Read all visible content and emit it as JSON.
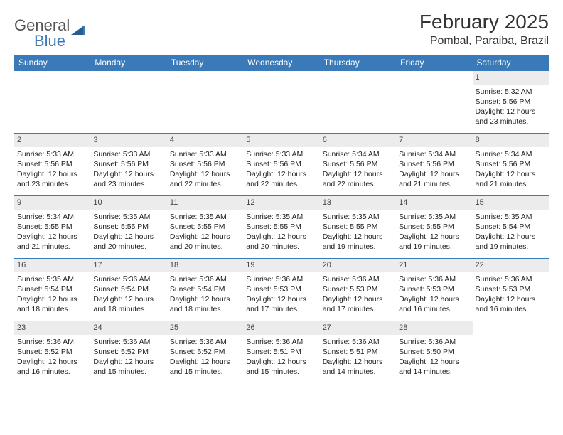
{
  "logo": {
    "word1": "General",
    "word2": "Blue"
  },
  "title": "February 2025",
  "location": "Pombal, Paraiba, Brazil",
  "colors": {
    "header_bg": "#3a7ab8",
    "header_fg": "#ffffff",
    "daynum_bg": "#ececec",
    "cell_border": "#3a7ab8",
    "text": "#222222",
    "logo_gray": "#555555",
    "logo_blue": "#3a7ab8"
  },
  "typography": {
    "title_fontsize": 28,
    "location_fontsize": 16,
    "header_fontsize": 12,
    "cell_fontsize": 10.5,
    "font_family": "Arial"
  },
  "day_headers": [
    "Sunday",
    "Monday",
    "Tuesday",
    "Wednesday",
    "Thursday",
    "Friday",
    "Saturday"
  ],
  "weeks": [
    [
      {
        "n": "",
        "lines": []
      },
      {
        "n": "",
        "lines": []
      },
      {
        "n": "",
        "lines": []
      },
      {
        "n": "",
        "lines": []
      },
      {
        "n": "",
        "lines": []
      },
      {
        "n": "",
        "lines": []
      },
      {
        "n": "1",
        "lines": [
          "Sunrise: 5:32 AM",
          "Sunset: 5:56 PM",
          "Daylight: 12 hours and 23 minutes."
        ]
      }
    ],
    [
      {
        "n": "2",
        "lines": [
          "Sunrise: 5:33 AM",
          "Sunset: 5:56 PM",
          "Daylight: 12 hours and 23 minutes."
        ]
      },
      {
        "n": "3",
        "lines": [
          "Sunrise: 5:33 AM",
          "Sunset: 5:56 PM",
          "Daylight: 12 hours and 23 minutes."
        ]
      },
      {
        "n": "4",
        "lines": [
          "Sunrise: 5:33 AM",
          "Sunset: 5:56 PM",
          "Daylight: 12 hours and 22 minutes."
        ]
      },
      {
        "n": "5",
        "lines": [
          "Sunrise: 5:33 AM",
          "Sunset: 5:56 PM",
          "Daylight: 12 hours and 22 minutes."
        ]
      },
      {
        "n": "6",
        "lines": [
          "Sunrise: 5:34 AM",
          "Sunset: 5:56 PM",
          "Daylight: 12 hours and 22 minutes."
        ]
      },
      {
        "n": "7",
        "lines": [
          "Sunrise: 5:34 AM",
          "Sunset: 5:56 PM",
          "Daylight: 12 hours and 21 minutes."
        ]
      },
      {
        "n": "8",
        "lines": [
          "Sunrise: 5:34 AM",
          "Sunset: 5:56 PM",
          "Daylight: 12 hours and 21 minutes."
        ]
      }
    ],
    [
      {
        "n": "9",
        "lines": [
          "Sunrise: 5:34 AM",
          "Sunset: 5:55 PM",
          "Daylight: 12 hours and 21 minutes."
        ]
      },
      {
        "n": "10",
        "lines": [
          "Sunrise: 5:35 AM",
          "Sunset: 5:55 PM",
          "Daylight: 12 hours and 20 minutes."
        ]
      },
      {
        "n": "11",
        "lines": [
          "Sunrise: 5:35 AM",
          "Sunset: 5:55 PM",
          "Daylight: 12 hours and 20 minutes."
        ]
      },
      {
        "n": "12",
        "lines": [
          "Sunrise: 5:35 AM",
          "Sunset: 5:55 PM",
          "Daylight: 12 hours and 20 minutes."
        ]
      },
      {
        "n": "13",
        "lines": [
          "Sunrise: 5:35 AM",
          "Sunset: 5:55 PM",
          "Daylight: 12 hours and 19 minutes."
        ]
      },
      {
        "n": "14",
        "lines": [
          "Sunrise: 5:35 AM",
          "Sunset: 5:55 PM",
          "Daylight: 12 hours and 19 minutes."
        ]
      },
      {
        "n": "15",
        "lines": [
          "Sunrise: 5:35 AM",
          "Sunset: 5:54 PM",
          "Daylight: 12 hours and 19 minutes."
        ]
      }
    ],
    [
      {
        "n": "16",
        "lines": [
          "Sunrise: 5:35 AM",
          "Sunset: 5:54 PM",
          "Daylight: 12 hours and 18 minutes."
        ]
      },
      {
        "n": "17",
        "lines": [
          "Sunrise: 5:36 AM",
          "Sunset: 5:54 PM",
          "Daylight: 12 hours and 18 minutes."
        ]
      },
      {
        "n": "18",
        "lines": [
          "Sunrise: 5:36 AM",
          "Sunset: 5:54 PM",
          "Daylight: 12 hours and 18 minutes."
        ]
      },
      {
        "n": "19",
        "lines": [
          "Sunrise: 5:36 AM",
          "Sunset: 5:53 PM",
          "Daylight: 12 hours and 17 minutes."
        ]
      },
      {
        "n": "20",
        "lines": [
          "Sunrise: 5:36 AM",
          "Sunset: 5:53 PM",
          "Daylight: 12 hours and 17 minutes."
        ]
      },
      {
        "n": "21",
        "lines": [
          "Sunrise: 5:36 AM",
          "Sunset: 5:53 PM",
          "Daylight: 12 hours and 16 minutes."
        ]
      },
      {
        "n": "22",
        "lines": [
          "Sunrise: 5:36 AM",
          "Sunset: 5:53 PM",
          "Daylight: 12 hours and 16 minutes."
        ]
      }
    ],
    [
      {
        "n": "23",
        "lines": [
          "Sunrise: 5:36 AM",
          "Sunset: 5:52 PM",
          "Daylight: 12 hours and 16 minutes."
        ]
      },
      {
        "n": "24",
        "lines": [
          "Sunrise: 5:36 AM",
          "Sunset: 5:52 PM",
          "Daylight: 12 hours and 15 minutes."
        ]
      },
      {
        "n": "25",
        "lines": [
          "Sunrise: 5:36 AM",
          "Sunset: 5:52 PM",
          "Daylight: 12 hours and 15 minutes."
        ]
      },
      {
        "n": "26",
        "lines": [
          "Sunrise: 5:36 AM",
          "Sunset: 5:51 PM",
          "Daylight: 12 hours and 15 minutes."
        ]
      },
      {
        "n": "27",
        "lines": [
          "Sunrise: 5:36 AM",
          "Sunset: 5:51 PM",
          "Daylight: 12 hours and 14 minutes."
        ]
      },
      {
        "n": "28",
        "lines": [
          "Sunrise: 5:36 AM",
          "Sunset: 5:50 PM",
          "Daylight: 12 hours and 14 minutes."
        ]
      },
      {
        "n": "",
        "lines": []
      }
    ]
  ]
}
